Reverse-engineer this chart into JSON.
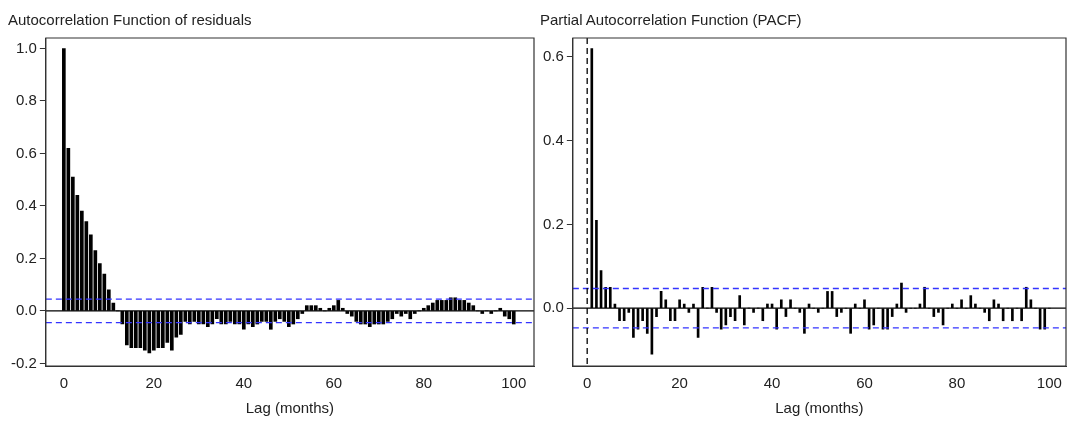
{
  "chart_data": [
    {
      "type": "bar",
      "title": "Autocorrelation Function of residuals",
      "xlabel": "Lag (months)",
      "color": "#000000",
      "x": [
        0,
        1,
        2,
        3,
        4,
        5,
        6,
        7,
        8,
        9,
        10,
        11,
        12,
        13,
        14,
        15,
        16,
        17,
        18,
        19,
        20,
        21,
        22,
        23,
        24,
        25,
        26,
        27,
        28,
        29,
        30,
        31,
        32,
        33,
        34,
        35,
        36,
        37,
        38,
        39,
        40,
        41,
        42,
        43,
        44,
        45,
        46,
        47,
        48,
        49,
        50,
        51,
        52,
        53,
        54,
        55,
        56,
        57,
        58,
        59,
        60,
        61,
        62,
        63,
        64,
        65,
        66,
        67,
        68,
        69,
        70,
        71,
        72,
        73,
        74,
        75,
        76,
        77,
        78,
        79,
        80,
        81,
        82,
        83,
        84,
        85,
        86,
        87,
        88,
        89,
        90,
        91,
        92,
        93,
        94,
        95,
        96,
        97,
        98,
        99,
        100
      ],
      "values": [
        1.0,
        0.62,
        0.51,
        0.44,
        0.38,
        0.34,
        0.29,
        0.23,
        0.18,
        0.14,
        0.08,
        0.03,
        0.0,
        -0.05,
        -0.13,
        -0.14,
        -0.14,
        -0.14,
        -0.15,
        -0.16,
        -0.15,
        -0.14,
        -0.14,
        -0.12,
        -0.15,
        -0.1,
        -0.09,
        -0.04,
        -0.05,
        -0.04,
        -0.05,
        -0.05,
        -0.06,
        -0.05,
        -0.03,
        -0.05,
        -0.05,
        -0.04,
        -0.05,
        -0.05,
        -0.07,
        -0.05,
        -0.06,
        -0.05,
        -0.04,
        -0.04,
        -0.07,
        -0.04,
        -0.03,
        -0.04,
        -0.06,
        -0.05,
        -0.03,
        -0.01,
        0.02,
        0.02,
        0.02,
        0.01,
        0.0,
        0.01,
        0.02,
        0.04,
        0.01,
        -0.01,
        -0.02,
        -0.04,
        -0.05,
        -0.05,
        -0.06,
        -0.05,
        -0.05,
        -0.05,
        -0.04,
        -0.03,
        -0.01,
        -0.02,
        -0.01,
        -0.03,
        -0.01,
        0.0,
        0.01,
        0.02,
        0.03,
        0.04,
        0.04,
        0.04,
        0.05,
        0.05,
        0.04,
        0.04,
        0.03,
        0.02,
        0.0,
        -0.01,
        0.0,
        -0.01,
        0.0,
        0.01,
        -0.02,
        -0.03,
        -0.05
      ],
      "xlim": [
        -4,
        104.5
      ],
      "xticks": [
        0,
        20,
        40,
        60,
        80,
        100
      ],
      "ylim": [
        -0.21,
        1.04
      ],
      "yticks": [
        {
          "value": -0.2,
          "label": "-0.2"
        },
        {
          "value": 0,
          "label": "0.0"
        },
        {
          "value": 0.2,
          "label": "0.2"
        },
        {
          "value": 0.4,
          "label": "0.4"
        },
        {
          "value": 0.6,
          "label": "0.6"
        },
        {
          "value": 0.8,
          "label": "0.8"
        },
        {
          "value": 1,
          "label": "1.0"
        }
      ],
      "ref_lines": [
        {
          "axis": "y",
          "value": 0,
          "color": "#000000",
          "line_style": "solid"
        },
        {
          "axis": "y",
          "value": 0.045,
          "color": "#3333ff",
          "line_style": "dashed"
        },
        {
          "axis": "y",
          "value": -0.045,
          "color": "#3333ff",
          "line_style": "dashed"
        }
      ],
      "grid": false,
      "legend": false
    },
    {
      "type": "bar",
      "title": "Partial Autocorrelation Function (PACF)",
      "xlabel": "Lag (months)",
      "color": "#000000",
      "x": [
        1,
        2,
        3,
        4,
        5,
        6,
        7,
        8,
        9,
        10,
        11,
        12,
        13,
        14,
        15,
        16,
        17,
        18,
        19,
        20,
        21,
        22,
        23,
        24,
        25,
        26,
        27,
        28,
        29,
        30,
        31,
        32,
        33,
        34,
        35,
        36,
        37,
        38,
        39,
        40,
        41,
        42,
        43,
        44,
        45,
        46,
        47,
        48,
        49,
        50,
        51,
        52,
        53,
        54,
        55,
        56,
        57,
        58,
        59,
        60,
        61,
        62,
        63,
        64,
        65,
        66,
        67,
        68,
        69,
        70,
        71,
        72,
        73,
        74,
        75,
        76,
        77,
        78,
        79,
        80,
        81,
        82,
        83,
        84,
        85,
        86,
        87,
        88,
        89,
        90,
        91,
        92,
        93,
        94,
        95,
        96,
        97,
        98,
        99,
        100
      ],
      "values": [
        0.62,
        0.21,
        0.09,
        0.05,
        0.05,
        0.01,
        -0.03,
        -0.03,
        -0.01,
        -0.07,
        -0.05,
        -0.03,
        -0.06,
        -0.11,
        -0.02,
        0.04,
        0.02,
        -0.03,
        -0.03,
        0.02,
        0.01,
        -0.01,
        0.01,
        -0.07,
        0.05,
        0.0,
        0.05,
        -0.01,
        -0.05,
        -0.04,
        -0.02,
        -0.03,
        0.03,
        -0.04,
        0.0,
        -0.01,
        0.0,
        -0.03,
        0.01,
        0.01,
        -0.05,
        0.02,
        -0.02,
        0.02,
        0.0,
        -0.01,
        -0.06,
        0.01,
        0.0,
        -0.01,
        0.0,
        0.04,
        0.04,
        -0.02,
        -0.01,
        0.0,
        -0.06,
        0.01,
        0.0,
        0.02,
        -0.05,
        -0.04,
        0.0,
        -0.05,
        -0.05,
        -0.02,
        0.01,
        0.06,
        -0.01,
        0.0,
        0.0,
        0.01,
        0.05,
        0.0,
        -0.02,
        -0.01,
        -0.04,
        0.0,
        0.01,
        0.0,
        0.02,
        0.0,
        0.03,
        0.01,
        0.0,
        -0.01,
        -0.03,
        0.02,
        0.01,
        -0.03,
        0.0,
        -0.03,
        0.0,
        -0.03,
        0.05,
        0.02,
        0.0,
        -0.05,
        -0.05,
        0.0
      ],
      "xlim": [
        -3.1,
        103.6
      ],
      "xticks": [
        0,
        20,
        40,
        60,
        80,
        100
      ],
      "ylim": [
        -0.138,
        0.645
      ],
      "yticks": [
        {
          "value": 0,
          "label": "0.0"
        },
        {
          "value": 0.2,
          "label": "0.2"
        },
        {
          "value": 0.4,
          "label": "0.4"
        },
        {
          "value": 0.6,
          "label": "0.6"
        }
      ],
      "ref_lines": [
        {
          "axis": "y",
          "value": 0,
          "color": "#000000",
          "line_style": "solid"
        },
        {
          "axis": "y",
          "value": 0.047,
          "color": "#3333ff",
          "line_style": "dashed"
        },
        {
          "axis": "y",
          "value": -0.047,
          "color": "#3333ff",
          "line_style": "dashed"
        },
        {
          "axis": "x",
          "value": 0,
          "color": "#000000",
          "line_style": "dashed"
        }
      ],
      "grid": false,
      "legend": false
    }
  ]
}
